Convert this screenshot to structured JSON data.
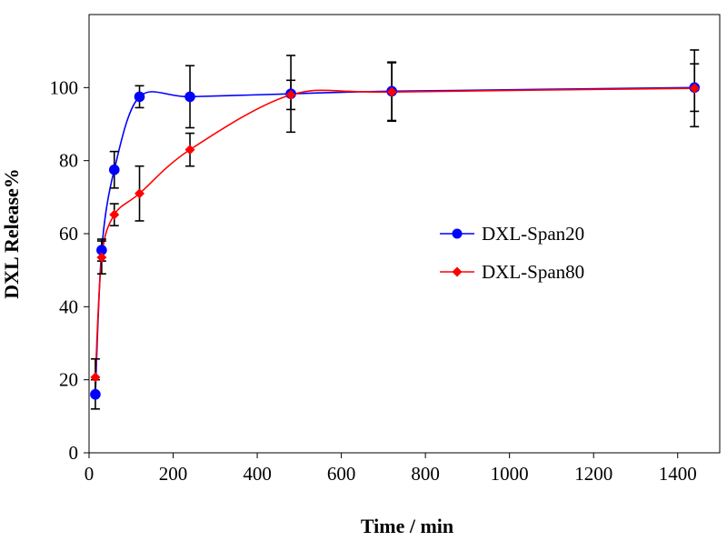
{
  "chart_data": {
    "type": "line",
    "title": "",
    "xlabel": "Time / min",
    "ylabel": "DXL Release%",
    "xlim": [
      0,
      1500
    ],
    "ylim": [
      0,
      120
    ],
    "xticks": [
      0,
      200,
      400,
      600,
      800,
      1000,
      1200,
      1400
    ],
    "yticks": [
      0,
      20,
      40,
      60,
      80,
      100
    ],
    "x_tick_labels": [
      "0",
      "200",
      "400",
      "600",
      "800",
      "1000",
      "1200",
      "1400"
    ],
    "y_tick_labels": [
      "0",
      "20",
      "40",
      "60",
      "80",
      "100"
    ],
    "grid": false,
    "legend_position": "center-right",
    "series": [
      {
        "name": "DXL-Span20",
        "color": "#0000ff",
        "marker": "circle",
        "x": [
          15,
          30,
          60,
          120,
          240,
          480,
          720,
          1440
        ],
        "values": [
          16,
          55.5,
          77.5,
          97.5,
          97.5,
          98.3,
          99,
          100
        ],
        "errors": [
          4,
          3,
          5,
          3,
          8.5,
          10.5,
          8,
          6.5
        ]
      },
      {
        "name": "DXL-Span80",
        "color": "#ff0000",
        "marker": "diamond",
        "x": [
          15,
          30,
          60,
          120,
          240,
          480,
          720,
          1440
        ],
        "values": [
          20.7,
          53.5,
          65.2,
          71,
          83,
          98,
          98.8,
          99.8
        ],
        "errors": [
          5,
          4.5,
          3,
          7.5,
          4.5,
          4,
          8,
          10.5
        ]
      }
    ]
  }
}
